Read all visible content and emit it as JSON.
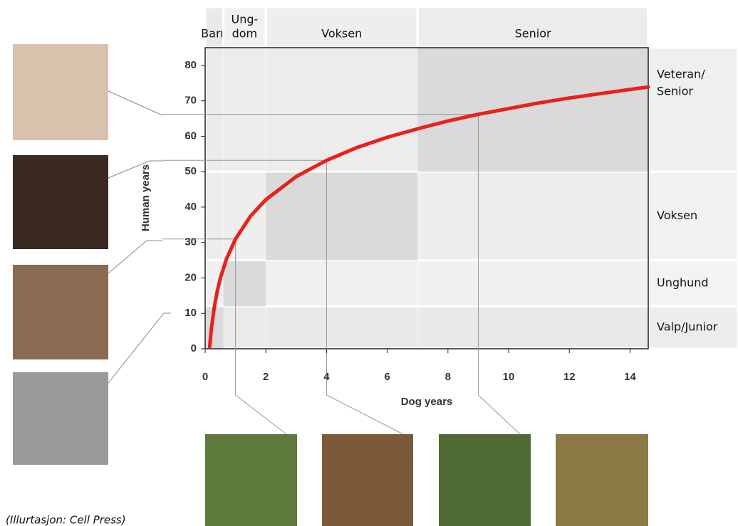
{
  "chart_data": {
    "type": "line",
    "x_label": "Dog years",
    "y_label": "Human years",
    "x": [
      0.15,
      0.2,
      0.3,
      0.4,
      0.5,
      0.7,
      1,
      1.5,
      2,
      3,
      4,
      5,
      6,
      7,
      8,
      9,
      10,
      11,
      12,
      13,
      14,
      14.6
    ],
    "values": [
      0.6,
      5.3,
      11.7,
      16.3,
      19.9,
      25.3,
      31,
      37.5,
      42.1,
      48.6,
      53.2,
      56.8,
      59.7,
      62.1,
      64.3,
      66.2,
      67.8,
      69.4,
      70.8,
      72.0,
      73.2,
      73.9
    ],
    "color": "#e8211b",
    "xlim": [
      0,
      14.6
    ],
    "ylim": [
      0,
      85
    ],
    "xticks": [
      0,
      2,
      4,
      6,
      8,
      10,
      12,
      14
    ],
    "yticks": [
      0,
      10,
      20,
      30,
      40,
      50,
      60,
      70,
      80
    ],
    "guides": {
      "x": [
        1,
        4,
        9
      ],
      "y": [
        31,
        53.2,
        66.2
      ]
    },
    "stages_dog": [
      {
        "label": [
          "Barn"
        ],
        "range": [
          0,
          0.6
        ]
      },
      {
        "label": [
          "Ung-",
          "dom"
        ],
        "range": [
          0.6,
          2
        ]
      },
      {
        "label": [
          "Voksen"
        ],
        "range": [
          2,
          7
        ]
      },
      {
        "label": [
          "Senior"
        ],
        "range": [
          7,
          14.6
        ]
      }
    ],
    "stages_human": [
      {
        "label": [
          "Valp/Junior"
        ],
        "range": [
          0,
          12
        ]
      },
      {
        "label": [
          "Unghund"
        ],
        "range": [
          12,
          25
        ]
      },
      {
        "label": [
          "Voksen"
        ],
        "range": [
          25,
          50
        ]
      },
      {
        "label": [
          "Veteran/",
          "Senior"
        ],
        "range": [
          50,
          85
        ]
      }
    ],
    "note": "(Illurtasjon: Cell Press)"
  }
}
